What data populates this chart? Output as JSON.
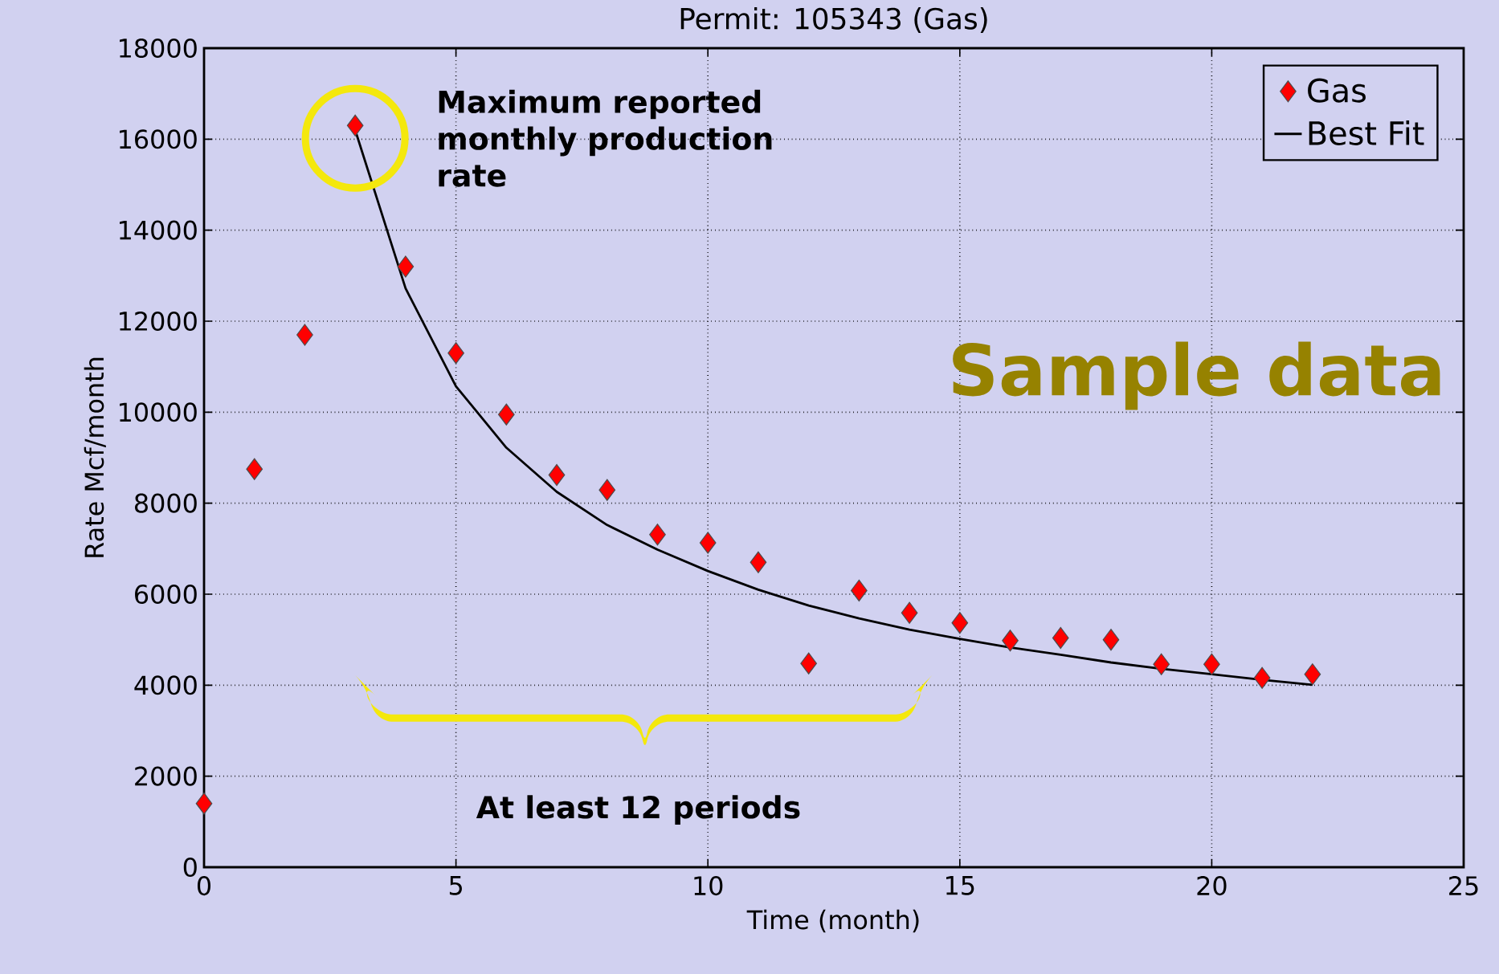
{
  "chart_data": {
    "type": "scatter",
    "title": "Permit: 105343 (Gas)",
    "xlabel": "Time (month)",
    "ylabel": "Rate Mcf/month",
    "xlim": [
      0,
      25
    ],
    "xticks": [
      0,
      5,
      10,
      15,
      20,
      25
    ],
    "ylim": [
      0,
      18000
    ],
    "yticks": [
      0,
      2000,
      4000,
      6000,
      8000,
      10000,
      12000,
      14000,
      16000,
      18000
    ],
    "grid": true,
    "legend": "top right",
    "marker": "diamond",
    "series": [
      {
        "name": "Gas",
        "color": "#ff0000",
        "x": [
          0,
          1,
          2,
          3,
          4,
          5,
          6,
          7,
          8,
          9,
          10,
          11,
          12,
          13,
          14,
          15,
          16,
          17,
          18,
          19,
          20,
          21,
          22
        ],
        "values": [
          1400,
          8750,
          11700,
          16300,
          13200,
          11300,
          9950,
          8620,
          8290,
          7310,
          7130,
          6700,
          4480,
          6080,
          5590,
          5370,
          4980,
          5040,
          5000,
          4460,
          4460,
          4160,
          4240
        ]
      },
      {
        "name": "Best Fit",
        "type": "line",
        "color": "#000000",
        "marker": "none",
        "line_style": "solid",
        "x": [
          3,
          4,
          5,
          6,
          7,
          8,
          9,
          10,
          11,
          12,
          13,
          14,
          15,
          16,
          17,
          18,
          19,
          20,
          21,
          22
        ],
        "values": [
          16200,
          12720,
          10570,
          9220,
          8250,
          7520,
          6980,
          6510,
          6100,
          5750,
          5470,
          5220,
          5020,
          4830,
          4670,
          4500,
          4360,
          4240,
          4120,
          4010
        ]
      }
    ],
    "annotations": [
      "Maximum reported monthly production rate",
      "At least 12 periods",
      "Sample data"
    ]
  }
}
